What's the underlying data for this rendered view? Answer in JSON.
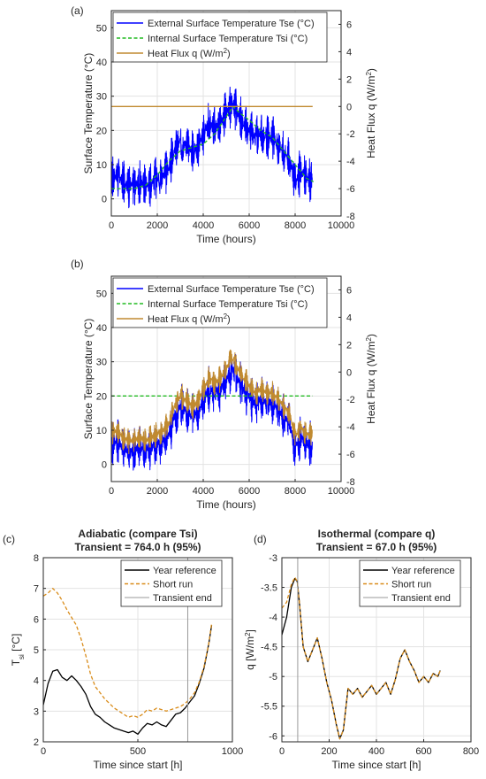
{
  "chart_data": [
    {
      "id": "a",
      "panel_label": "(a)",
      "type": "line",
      "xlabel": "Time (hours)",
      "ylabel": "Surface Temperature (°C)",
      "y2label": "Heat Flux q (W/m²)",
      "y2label_main": "Heat Flux q (W/m",
      "y2label_sup": "2",
      "y2label_end": ")",
      "xlim": [
        0,
        10000
      ],
      "ylim": [
        -5,
        55
      ],
      "y2lim": [
        -8,
        7
      ],
      "xticks": [
        0,
        2000,
        4000,
        6000,
        8000,
        10000
      ],
      "yticks": [
        0,
        10,
        20,
        30,
        40,
        50
      ],
      "y2ticks": [
        -8,
        -6,
        -4,
        -2,
        0,
        2,
        4,
        6
      ],
      "grid": true,
      "legend": "top-left",
      "series": [
        {
          "name": "External Surface Temperature Tse (°C)",
          "color": "#0000ff",
          "style": "solid",
          "axis": "left",
          "x": [
            0,
            250,
            500,
            750,
            1000,
            1250,
            1500,
            1750,
            2000,
            2250,
            2500,
            2750,
            3000,
            3250,
            3500,
            3750,
            4000,
            4250,
            4500,
            4750,
            5000,
            5250,
            5500,
            5750,
            6000,
            6250,
            6500,
            6750,
            7000,
            7250,
            7500,
            7750,
            8000,
            8250,
            8500,
            8750
          ],
          "y": [
            6,
            7,
            5,
            4,
            4,
            5,
            4,
            5,
            6,
            7,
            9,
            14,
            17,
            16,
            14,
            15,
            19,
            22,
            21,
            22,
            25,
            28,
            25,
            22,
            20,
            18,
            19,
            18,
            18,
            16,
            14,
            12,
            5,
            8,
            6,
            6
          ],
          "amplitude": 7
        },
        {
          "name": "Internal Surface Temperature Tsi (°C)",
          "color": "#22bb22",
          "style": "dashed",
          "axis": "left",
          "x": [
            0,
            500,
            1000,
            1500,
            2000,
            2500,
            3000,
            3500,
            4000,
            4500,
            5000,
            5300,
            5600,
            6000,
            6500,
            7000,
            7500,
            8000,
            8500,
            8800
          ],
          "y": [
            3,
            3,
            3,
            4,
            7,
            11,
            14,
            15,
            16,
            19,
            24,
            27,
            25,
            23,
            20,
            18,
            14,
            10,
            6,
            5
          ]
        },
        {
          "name": "Heat Flux q (W/m²)",
          "name_main": "Heat Flux q (W/m",
          "name_sup": "2",
          "name_end": ")",
          "color": "#c08a30",
          "style": "solid",
          "axis": "right",
          "x": [
            0,
            8760
          ],
          "y": [
            0,
            0
          ]
        }
      ]
    },
    {
      "id": "b",
      "panel_label": "(b)",
      "type": "line",
      "xlabel": "Time (hours)",
      "ylabel": "Surface Temperature (°C)",
      "y2label": "Heat Flux q (W/m²)",
      "y2label_main": "Heat Flux q (W/m",
      "y2label_sup": "2",
      "y2label_end": ")",
      "xlim": [
        0,
        10000
      ],
      "ylim": [
        -5,
        55
      ],
      "y2lim": [
        -8,
        7
      ],
      "xticks": [
        0,
        2000,
        4000,
        6000,
        8000,
        10000
      ],
      "yticks": [
        0,
        10,
        20,
        30,
        40,
        50
      ],
      "y2ticks": [
        -8,
        -6,
        -4,
        -2,
        0,
        2,
        4,
        6
      ],
      "grid": true,
      "legend": "top-left",
      "series": [
        {
          "name": "External Surface Temperature Tse (°C)",
          "color": "#0000ff",
          "style": "solid",
          "axis": "left",
          "x": [
            0,
            250,
            500,
            750,
            1000,
            1250,
            1500,
            1750,
            2000,
            2250,
            2500,
            2750,
            3000,
            3250,
            3500,
            3750,
            4000,
            4250,
            4500,
            4750,
            5000,
            5250,
            5500,
            5750,
            6000,
            6250,
            6500,
            6750,
            7000,
            7250,
            7500,
            7750,
            8000,
            8250,
            8500,
            8750
          ],
          "y": [
            6,
            7,
            5,
            4,
            4,
            5,
            4,
            5,
            6,
            7,
            9,
            14,
            17,
            16,
            14,
            15,
            19,
            22,
            21,
            22,
            25,
            28,
            25,
            22,
            20,
            18,
            19,
            18,
            18,
            16,
            14,
            12,
            5,
            8,
            6,
            6
          ],
          "amplitude": 7
        },
        {
          "name": "Internal Surface Temperature Tsi (°C)",
          "color": "#22bb22",
          "style": "dashed",
          "axis": "left",
          "x": [
            0,
            8760
          ],
          "y": [
            20,
            20
          ]
        },
        {
          "name": "Heat Flux q (W/m²)",
          "name_main": "Heat Flux q (W/m",
          "name_sup": "2",
          "name_end": ")",
          "color": "#c08a30",
          "style": "solid",
          "axis": "left",
          "x": [
            0,
            250,
            500,
            750,
            1000,
            1250,
            1500,
            1750,
            2000,
            2250,
            2500,
            2750,
            3000,
            3250,
            3500,
            3750,
            4000,
            4250,
            4500,
            4750,
            5000,
            5250,
            5500,
            5750,
            6000,
            6250,
            6500,
            6750,
            7000,
            7250,
            7500,
            7750,
            8000,
            8250,
            8500,
            8750
          ],
          "y": [
            9,
            10,
            8,
            7,
            7,
            8,
            7,
            8,
            9,
            10,
            12,
            17,
            20,
            19,
            17,
            18,
            22,
            25,
            24,
            25,
            28,
            31,
            28,
            25,
            23,
            21,
            22,
            21,
            21,
            19,
            17,
            15,
            8,
            11,
            9,
            9
          ],
          "amplitude": 4
        }
      ]
    },
    {
      "id": "c",
      "panel_label": "(c)",
      "type": "line",
      "title": "Adiabatic (compare Tsi)",
      "subtitle": "Transient = 764.0 h (95%)",
      "xlabel": "Time since start [h]",
      "ylabel": "T_si [°C]",
      "ylabel_main": "T",
      "ylabel_sub": "si",
      "ylabel_end": " [°C]",
      "xlim": [
        0,
        1000
      ],
      "ylim": [
        2,
        8
      ],
      "xticks": [
        0,
        500,
        1000
      ],
      "yticks": [
        2,
        3,
        4,
        5,
        6,
        7,
        8
      ],
      "grid": true,
      "legend": "top-right",
      "transient_end": 764,
      "series": [
        {
          "name": "Year reference",
          "color": "#000000",
          "style": "solid",
          "x": [
            0,
            25,
            50,
            75,
            100,
            125,
            150,
            175,
            200,
            225,
            250,
            275,
            300,
            325,
            350,
            375,
            400,
            425,
            450,
            475,
            500,
            525,
            550,
            575,
            600,
            625,
            650,
            675,
            700,
            725,
            750,
            775,
            800,
            825,
            850,
            875,
            890
          ],
          "y": [
            3.2,
            3.9,
            4.3,
            4.35,
            4.1,
            4.0,
            4.15,
            4.0,
            3.8,
            3.55,
            3.15,
            2.9,
            2.8,
            2.65,
            2.55,
            2.45,
            2.4,
            2.35,
            2.3,
            2.35,
            2.25,
            2.45,
            2.6,
            2.55,
            2.65,
            2.55,
            2.5,
            2.7,
            2.9,
            2.95,
            3.1,
            3.3,
            3.5,
            3.9,
            4.4,
            5.2,
            5.8
          ]
        },
        {
          "name": "Short run",
          "color": "#d98c1a",
          "style": "dashed",
          "x": [
            0,
            25,
            50,
            75,
            100,
            125,
            150,
            175,
            200,
            225,
            250,
            275,
            300,
            325,
            350,
            375,
            400,
            425,
            450,
            475,
            500,
            525,
            550,
            575,
            600,
            625,
            650,
            675,
            700,
            725,
            750,
            775,
            800,
            825,
            850,
            875,
            890
          ],
          "y": [
            6.75,
            6.85,
            7.0,
            6.85,
            6.6,
            6.3,
            6.05,
            5.8,
            5.35,
            4.8,
            4.2,
            3.8,
            3.6,
            3.4,
            3.25,
            3.1,
            3.0,
            2.9,
            2.8,
            2.85,
            2.8,
            2.9,
            3.05,
            3.0,
            3.1,
            3.05,
            3.0,
            3.05,
            3.1,
            3.15,
            3.25,
            3.4,
            3.6,
            3.95,
            4.45,
            5.2,
            5.85
          ]
        },
        {
          "name": "Transient end",
          "color": "#999999",
          "style": "solid"
        }
      ]
    },
    {
      "id": "d",
      "panel_label": "(d)",
      "type": "line",
      "title": "Isothermal (compare q)",
      "subtitle": "Transient = 67.0 h (95%)",
      "xlabel": "Time since start [h]",
      "ylabel": "q [W/m²]",
      "ylabel_main": "q [W/m",
      "ylabel_sup": "2",
      "ylabel_end": "]",
      "xlim": [
        0,
        800
      ],
      "ylim": [
        -6.1,
        -3.0
      ],
      "xticks": [
        0,
        200,
        400,
        600,
        800
      ],
      "yticks": [
        -6,
        -5.5,
        -5,
        -4.5,
        -4,
        -3.5,
        -3
      ],
      "grid": true,
      "legend": "top-right",
      "transient_end": 67,
      "series": [
        {
          "name": "Year reference",
          "color": "#000000",
          "style": "solid",
          "x": [
            0,
            20,
            40,
            55,
            65,
            75,
            90,
            110,
            130,
            150,
            170,
            190,
            210,
            230,
            245,
            260,
            280,
            300,
            320,
            340,
            360,
            380,
            400,
            420,
            440,
            460,
            480,
            500,
            520,
            540,
            560,
            580,
            600,
            620,
            640,
            660,
            670
          ],
          "y": [
            -4.3,
            -4.0,
            -3.5,
            -3.35,
            -3.4,
            -3.8,
            -4.5,
            -4.75,
            -4.55,
            -4.35,
            -4.7,
            -5.1,
            -5.4,
            -5.8,
            -6.05,
            -5.9,
            -5.2,
            -5.3,
            -5.2,
            -5.35,
            -5.25,
            -5.15,
            -5.3,
            -5.2,
            -5.1,
            -5.3,
            -5.05,
            -4.7,
            -4.55,
            -4.75,
            -4.9,
            -5.1,
            -5.0,
            -5.1,
            -4.95,
            -5.0,
            -4.9
          ]
        },
        {
          "name": "Short run",
          "color": "#d98c1a",
          "style": "dashed",
          "x": [
            0,
            20,
            40,
            55,
            65,
            75,
            90,
            110,
            130,
            150,
            170,
            190,
            210,
            230,
            245,
            260,
            280,
            300,
            320,
            340,
            360,
            380,
            400,
            420,
            440,
            460,
            480,
            500,
            520,
            540,
            560,
            580,
            600,
            620,
            640,
            660,
            670
          ],
          "y": [
            -3.85,
            -3.75,
            -3.45,
            -3.33,
            -3.4,
            -3.8,
            -4.5,
            -4.75,
            -4.55,
            -4.35,
            -4.7,
            -5.1,
            -5.4,
            -5.8,
            -6.05,
            -5.9,
            -5.2,
            -5.3,
            -5.2,
            -5.35,
            -5.25,
            -5.15,
            -5.3,
            -5.2,
            -5.1,
            -5.3,
            -5.05,
            -4.7,
            -4.55,
            -4.75,
            -4.9,
            -5.1,
            -5.0,
            -5.1,
            -4.95,
            -5.0,
            -4.9
          ]
        },
        {
          "name": "Transient end",
          "color": "#999999",
          "style": "solid"
        }
      ]
    }
  ]
}
